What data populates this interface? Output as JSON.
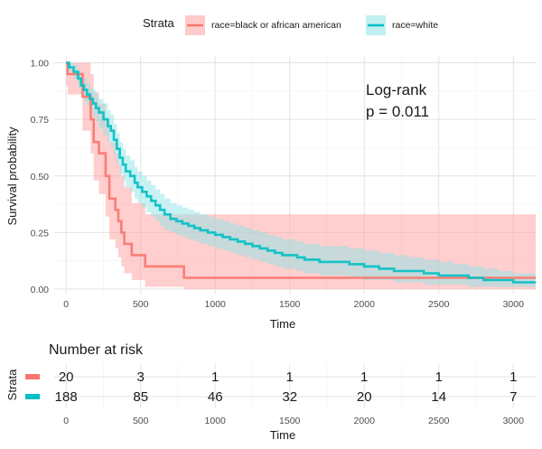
{
  "chart_data": {
    "type": "line",
    "subtype": "kaplan-meier",
    "xlabel": "Time",
    "ylabel": "Survival probability",
    "xlim": [
      -80,
      3150
    ],
    "ylim": [
      -0.02,
      1.03
    ],
    "xticks": [
      0,
      500,
      1000,
      1500,
      2000,
      2500,
      3000
    ],
    "yticks": [
      0.0,
      0.25,
      0.5,
      0.75,
      1.0
    ],
    "ytick_labels": [
      "0.00",
      "0.25",
      "0.50",
      "0.75",
      "1.00"
    ],
    "grid": true,
    "legend": {
      "title": "Strata",
      "position": "top"
    },
    "annotation": {
      "line1": "Log-rank",
      "line2": "p = 0.011"
    },
    "series": [
      {
        "name": "race=black or african american",
        "color": "#F8766D",
        "band_color": "#FF9E9E",
        "steps": [
          [
            0,
            1.0
          ],
          [
            10,
            0.95
          ],
          [
            100,
            0.95
          ],
          [
            110,
            0.85
          ],
          [
            160,
            0.85
          ],
          [
            165,
            0.75
          ],
          [
            180,
            0.75
          ],
          [
            185,
            0.65
          ],
          [
            215,
            0.65
          ],
          [
            220,
            0.6
          ],
          [
            260,
            0.6
          ],
          [
            265,
            0.5
          ],
          [
            280,
            0.5
          ],
          [
            290,
            0.4
          ],
          [
            325,
            0.4
          ],
          [
            330,
            0.35
          ],
          [
            340,
            0.35
          ],
          [
            350,
            0.3
          ],
          [
            360,
            0.3
          ],
          [
            370,
            0.25
          ],
          [
            380,
            0.25
          ],
          [
            390,
            0.2
          ],
          [
            430,
            0.2
          ],
          [
            440,
            0.15
          ],
          [
            520,
            0.15
          ],
          [
            530,
            0.1
          ],
          [
            780,
            0.1
          ],
          [
            790,
            0.05
          ],
          [
            3150,
            0.05
          ]
        ],
        "lower": [
          [
            0,
            0.9
          ],
          [
            10,
            0.86
          ],
          [
            100,
            0.86
          ],
          [
            110,
            0.7
          ],
          [
            160,
            0.7
          ],
          [
            165,
            0.6
          ],
          [
            180,
            0.6
          ],
          [
            185,
            0.48
          ],
          [
            215,
            0.48
          ],
          [
            220,
            0.42
          ],
          [
            260,
            0.42
          ],
          [
            265,
            0.32
          ],
          [
            280,
            0.32
          ],
          [
            290,
            0.22
          ],
          [
            325,
            0.22
          ],
          [
            330,
            0.18
          ],
          [
            340,
            0.18
          ],
          [
            350,
            0.14
          ],
          [
            360,
            0.14
          ],
          [
            370,
            0.1
          ],
          [
            380,
            0.1
          ],
          [
            390,
            0.07
          ],
          [
            430,
            0.07
          ],
          [
            440,
            0.04
          ],
          [
            520,
            0.04
          ],
          [
            530,
            0.01
          ],
          [
            780,
            0.01
          ],
          [
            790,
            0.0
          ],
          [
            3150,
            0.0
          ]
        ],
        "upper": [
          [
            0,
            1.0
          ],
          [
            100,
            1.0
          ],
          [
            110,
            1.0
          ],
          [
            160,
            1.0
          ],
          [
            165,
            0.95
          ],
          [
            180,
            0.95
          ],
          [
            185,
            0.87
          ],
          [
            215,
            0.87
          ],
          [
            220,
            0.82
          ],
          [
            260,
            0.82
          ],
          [
            265,
            0.74
          ],
          [
            280,
            0.74
          ],
          [
            290,
            0.65
          ],
          [
            325,
            0.65
          ],
          [
            330,
            0.6
          ],
          [
            340,
            0.6
          ],
          [
            350,
            0.55
          ],
          [
            360,
            0.55
          ],
          [
            370,
            0.5
          ],
          [
            380,
            0.5
          ],
          [
            390,
            0.45
          ],
          [
            430,
            0.45
          ],
          [
            440,
            0.38
          ],
          [
            520,
            0.38
          ],
          [
            530,
            0.33
          ],
          [
            3150,
            0.33
          ]
        ]
      },
      {
        "name": "race=white",
        "color": "#00BFC4",
        "band_color": "#8FE3E6",
        "steps": [
          [
            0,
            1.0
          ],
          [
            20,
            0.98
          ],
          [
            50,
            0.96
          ],
          [
            80,
            0.93
          ],
          [
            100,
            0.9
          ],
          [
            120,
            0.88
          ],
          [
            140,
            0.86
          ],
          [
            160,
            0.84
          ],
          [
            180,
            0.82
          ],
          [
            200,
            0.8
          ],
          [
            220,
            0.78
          ],
          [
            250,
            0.75
          ],
          [
            280,
            0.72
          ],
          [
            300,
            0.7
          ],
          [
            320,
            0.66
          ],
          [
            340,
            0.62
          ],
          [
            360,
            0.58
          ],
          [
            380,
            0.55
          ],
          [
            400,
            0.52
          ],
          [
            430,
            0.5
          ],
          [
            460,
            0.47
          ],
          [
            480,
            0.45
          ],
          [
            510,
            0.43
          ],
          [
            540,
            0.41
          ],
          [
            570,
            0.39
          ],
          [
            600,
            0.37
          ],
          [
            630,
            0.35
          ],
          [
            660,
            0.33
          ],
          [
            700,
            0.31
          ],
          [
            740,
            0.3
          ],
          [
            780,
            0.29
          ],
          [
            820,
            0.28
          ],
          [
            860,
            0.27
          ],
          [
            900,
            0.26
          ],
          [
            950,
            0.25
          ],
          [
            1000,
            0.24
          ],
          [
            1050,
            0.23
          ],
          [
            1100,
            0.22
          ],
          [
            1150,
            0.21
          ],
          [
            1200,
            0.2
          ],
          [
            1250,
            0.19
          ],
          [
            1300,
            0.18
          ],
          [
            1350,
            0.17
          ],
          [
            1400,
            0.16
          ],
          [
            1450,
            0.15
          ],
          [
            1500,
            0.15
          ],
          [
            1550,
            0.14
          ],
          [
            1600,
            0.13
          ],
          [
            1700,
            0.12
          ],
          [
            1800,
            0.12
          ],
          [
            1900,
            0.11
          ],
          [
            2000,
            0.1
          ],
          [
            2100,
            0.09
          ],
          [
            2200,
            0.08
          ],
          [
            2300,
            0.08
          ],
          [
            2400,
            0.07
          ],
          [
            2500,
            0.06
          ],
          [
            2600,
            0.06
          ],
          [
            2700,
            0.05
          ],
          [
            2800,
            0.04
          ],
          [
            2900,
            0.04
          ],
          [
            3000,
            0.03
          ],
          [
            3150,
            0.03
          ]
        ],
        "lower": [
          [
            0,
            0.98
          ],
          [
            20,
            0.96
          ],
          [
            50,
            0.93
          ],
          [
            80,
            0.89
          ],
          [
            100,
            0.86
          ],
          [
            120,
            0.83
          ],
          [
            140,
            0.81
          ],
          [
            160,
            0.78
          ],
          [
            180,
            0.76
          ],
          [
            200,
            0.74
          ],
          [
            220,
            0.71
          ],
          [
            250,
            0.68
          ],
          [
            280,
            0.65
          ],
          [
            300,
            0.63
          ],
          [
            320,
            0.59
          ],
          [
            340,
            0.55
          ],
          [
            360,
            0.51
          ],
          [
            380,
            0.48
          ],
          [
            400,
            0.45
          ],
          [
            430,
            0.43
          ],
          [
            460,
            0.4
          ],
          [
            480,
            0.38
          ],
          [
            510,
            0.36
          ],
          [
            540,
            0.34
          ],
          [
            570,
            0.32
          ],
          [
            600,
            0.3
          ],
          [
            630,
            0.28
          ],
          [
            660,
            0.26
          ],
          [
            700,
            0.25
          ],
          [
            740,
            0.24
          ],
          [
            780,
            0.23
          ],
          [
            820,
            0.22
          ],
          [
            860,
            0.21
          ],
          [
            900,
            0.2
          ],
          [
            950,
            0.19
          ],
          [
            1000,
            0.18
          ],
          [
            1050,
            0.17
          ],
          [
            1100,
            0.16
          ],
          [
            1150,
            0.15
          ],
          [
            1200,
            0.14
          ],
          [
            1250,
            0.13
          ],
          [
            1300,
            0.12
          ],
          [
            1350,
            0.11
          ],
          [
            1400,
            0.1
          ],
          [
            1450,
            0.09
          ],
          [
            1500,
            0.09
          ],
          [
            1550,
            0.08
          ],
          [
            1600,
            0.07
          ],
          [
            1700,
            0.06
          ],
          [
            1800,
            0.06
          ],
          [
            1900,
            0.05
          ],
          [
            2000,
            0.04
          ],
          [
            2100,
            0.04
          ],
          [
            2200,
            0.03
          ],
          [
            2300,
            0.03
          ],
          [
            2400,
            0.02
          ],
          [
            2500,
            0.02
          ],
          [
            2600,
            0.02
          ],
          [
            2700,
            0.01
          ],
          [
            2800,
            0.01
          ],
          [
            2900,
            0.01
          ],
          [
            3000,
            0.01
          ],
          [
            3150,
            0.01
          ]
        ],
        "upper": [
          [
            0,
            1.0
          ],
          [
            20,
            1.0
          ],
          [
            50,
            0.99
          ],
          [
            80,
            0.97
          ],
          [
            100,
            0.94
          ],
          [
            120,
            0.93
          ],
          [
            140,
            0.91
          ],
          [
            160,
            0.89
          ],
          [
            180,
            0.88
          ],
          [
            200,
            0.86
          ],
          [
            220,
            0.84
          ],
          [
            250,
            0.82
          ],
          [
            280,
            0.79
          ],
          [
            300,
            0.77
          ],
          [
            320,
            0.73
          ],
          [
            340,
            0.69
          ],
          [
            360,
            0.65
          ],
          [
            380,
            0.62
          ],
          [
            400,
            0.59
          ],
          [
            430,
            0.57
          ],
          [
            460,
            0.54
          ],
          [
            480,
            0.52
          ],
          [
            510,
            0.5
          ],
          [
            540,
            0.48
          ],
          [
            570,
            0.46
          ],
          [
            600,
            0.44
          ],
          [
            630,
            0.42
          ],
          [
            660,
            0.4
          ],
          [
            700,
            0.38
          ],
          [
            740,
            0.37
          ],
          [
            780,
            0.36
          ],
          [
            820,
            0.35
          ],
          [
            860,
            0.34
          ],
          [
            900,
            0.33
          ],
          [
            950,
            0.32
          ],
          [
            1000,
            0.31
          ],
          [
            1050,
            0.3
          ],
          [
            1100,
            0.29
          ],
          [
            1150,
            0.28
          ],
          [
            1200,
            0.27
          ],
          [
            1250,
            0.26
          ],
          [
            1300,
            0.25
          ],
          [
            1350,
            0.24
          ],
          [
            1400,
            0.23
          ],
          [
            1450,
            0.22
          ],
          [
            1500,
            0.22
          ],
          [
            1550,
            0.21
          ],
          [
            1600,
            0.2
          ],
          [
            1700,
            0.19
          ],
          [
            1800,
            0.19
          ],
          [
            1900,
            0.18
          ],
          [
            2000,
            0.17
          ],
          [
            2100,
            0.16
          ],
          [
            2200,
            0.15
          ],
          [
            2300,
            0.14
          ],
          [
            2400,
            0.13
          ],
          [
            2500,
            0.12
          ],
          [
            2600,
            0.11
          ],
          [
            2700,
            0.1
          ],
          [
            2800,
            0.09
          ],
          [
            2900,
            0.08
          ],
          [
            3000,
            0.07
          ],
          [
            3150,
            0.07
          ]
        ]
      }
    ]
  },
  "risk_table": {
    "title": "Number at risk",
    "ylabel": "Strata",
    "xlabel": "Time",
    "times": [
      0,
      500,
      1000,
      1500,
      2000,
      2500,
      3000
    ],
    "rows": [
      {
        "color": "#F8766D",
        "counts": [
          "20",
          "3",
          "1",
          "1",
          "1",
          "1",
          "1"
        ]
      },
      {
        "color": "#00BFC4",
        "counts": [
          "188",
          "85",
          "46",
          "32",
          "20",
          "14",
          "7"
        ]
      }
    ]
  }
}
